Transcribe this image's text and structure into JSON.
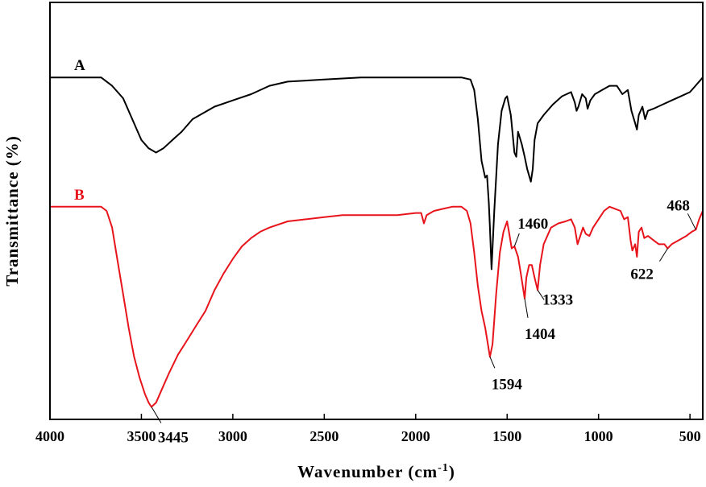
{
  "chart_data": {
    "type": "line",
    "xlabel": "Wavenumber (cm",
    "xlabel_sup": "-1",
    "xlabel_close": ")",
    "ylabel": "Transmittance (%)",
    "xlim": [
      4000,
      430
    ],
    "x_reversed": true,
    "x_ticks": [
      4000,
      3500,
      3000,
      2500,
      2000,
      1500,
      1000,
      500
    ],
    "ylim": [
      0,
      100
    ],
    "grid": false,
    "colors": {
      "A": "#000000",
      "B": "#e8141c",
      "axes": "#000000"
    },
    "series": [
      {
        "name": "A",
        "points": [
          [
            4000,
            82
          ],
          [
            3850,
            82
          ],
          [
            3720,
            82
          ],
          [
            3660,
            80
          ],
          [
            3600,
            77
          ],
          [
            3550,
            72
          ],
          [
            3500,
            67
          ],
          [
            3460,
            65
          ],
          [
            3420,
            64
          ],
          [
            3380,
            65
          ],
          [
            3330,
            67
          ],
          [
            3280,
            69
          ],
          [
            3220,
            72
          ],
          [
            3100,
            75
          ],
          [
            3000,
            76.5
          ],
          [
            2900,
            78
          ],
          [
            2800,
            80
          ],
          [
            2700,
            81
          ],
          [
            2500,
            81.5
          ],
          [
            2300,
            82
          ],
          [
            2100,
            82
          ],
          [
            1900,
            82
          ],
          [
            1750,
            82
          ],
          [
            1700,
            81.5
          ],
          [
            1680,
            79
          ],
          [
            1660,
            72
          ],
          [
            1640,
            62
          ],
          [
            1620,
            58
          ],
          [
            1610,
            58.5
          ],
          [
            1600,
            52
          ],
          [
            1594,
            46
          ],
          [
            1585,
            36
          ],
          [
            1570,
            50
          ],
          [
            1550,
            66
          ],
          [
            1530,
            74
          ],
          [
            1510,
            77
          ],
          [
            1500,
            77.5
          ],
          [
            1480,
            73
          ],
          [
            1460,
            64
          ],
          [
            1450,
            63
          ],
          [
            1440,
            69
          ],
          [
            1420,
            66
          ],
          [
            1404,
            63
          ],
          [
            1390,
            60
          ],
          [
            1370,
            57
          ],
          [
            1360,
            60
          ],
          [
            1350,
            67
          ],
          [
            1333,
            71
          ],
          [
            1300,
            73
          ],
          [
            1250,
            75.5
          ],
          [
            1200,
            77.5
          ],
          [
            1150,
            78.5
          ],
          [
            1130,
            76
          ],
          [
            1120,
            74
          ],
          [
            1110,
            75
          ],
          [
            1090,
            78
          ],
          [
            1070,
            77
          ],
          [
            1060,
            74.5
          ],
          [
            1045,
            76.5
          ],
          [
            1020,
            78
          ],
          [
            980,
            79
          ],
          [
            940,
            80
          ],
          [
            900,
            80
          ],
          [
            870,
            78
          ],
          [
            840,
            79
          ],
          [
            820,
            74
          ],
          [
            800,
            71
          ],
          [
            790,
            69.5
          ],
          [
            780,
            73
          ],
          [
            760,
            75
          ],
          [
            745,
            72
          ],
          [
            730,
            74
          ],
          [
            700,
            74.5
          ],
          [
            650,
            75.5
          ],
          [
            600,
            76.5
          ],
          [
            550,
            77.5
          ],
          [
            500,
            78.5
          ],
          [
            470,
            80
          ],
          [
            430,
            82
          ]
        ]
      },
      {
        "name": "B",
        "points": [
          [
            4000,
            51
          ],
          [
            3850,
            51
          ],
          [
            3720,
            51
          ],
          [
            3690,
            50
          ],
          [
            3660,
            46
          ],
          [
            3630,
            38
          ],
          [
            3600,
            30
          ],
          [
            3570,
            22
          ],
          [
            3540,
            15
          ],
          [
            3510,
            10
          ],
          [
            3480,
            6
          ],
          [
            3460,
            4
          ],
          [
            3445,
            3
          ],
          [
            3420,
            4
          ],
          [
            3390,
            7
          ],
          [
            3350,
            11
          ],
          [
            3300,
            15.5
          ],
          [
            3250,
            19
          ],
          [
            3200,
            22.5
          ],
          [
            3150,
            26
          ],
          [
            3100,
            31
          ],
          [
            3050,
            35
          ],
          [
            3000,
            38.5
          ],
          [
            2950,
            41.5
          ],
          [
            2900,
            43.5
          ],
          [
            2850,
            45
          ],
          [
            2800,
            46
          ],
          [
            2700,
            47.5
          ],
          [
            2600,
            48
          ],
          [
            2500,
            48.5
          ],
          [
            2400,
            49
          ],
          [
            2200,
            49
          ],
          [
            2100,
            49
          ],
          [
            2000,
            49.5
          ],
          [
            1970,
            49.5
          ],
          [
            1955,
            47
          ],
          [
            1940,
            49
          ],
          [
            1900,
            50
          ],
          [
            1850,
            50.5
          ],
          [
            1800,
            51
          ],
          [
            1750,
            51
          ],
          [
            1720,
            50
          ],
          [
            1700,
            47
          ],
          [
            1680,
            40
          ],
          [
            1660,
            32
          ],
          [
            1640,
            26
          ],
          [
            1620,
            22
          ],
          [
            1605,
            18
          ],
          [
            1594,
            15
          ],
          [
            1580,
            18
          ],
          [
            1560,
            30
          ],
          [
            1540,
            40
          ],
          [
            1520,
            45
          ],
          [
            1500,
            47.5
          ],
          [
            1490,
            45
          ],
          [
            1475,
            41
          ],
          [
            1460,
            41.5
          ],
          [
            1440,
            39
          ],
          [
            1425,
            35
          ],
          [
            1404,
            29
          ],
          [
            1395,
            34
          ],
          [
            1380,
            37
          ],
          [
            1365,
            37
          ],
          [
            1350,
            34
          ],
          [
            1333,
            31
          ],
          [
            1320,
            37
          ],
          [
            1300,
            42
          ],
          [
            1260,
            46
          ],
          [
            1220,
            47
          ],
          [
            1180,
            47.5
          ],
          [
            1150,
            48
          ],
          [
            1130,
            46
          ],
          [
            1115,
            42
          ],
          [
            1100,
            44
          ],
          [
            1085,
            46
          ],
          [
            1070,
            44.5
          ],
          [
            1050,
            44
          ],
          [
            1030,
            46
          ],
          [
            1000,
            48
          ],
          [
            970,
            50
          ],
          [
            940,
            51
          ],
          [
            910,
            50.5
          ],
          [
            880,
            50
          ],
          [
            860,
            48
          ],
          [
            840,
            48.5
          ],
          [
            825,
            43
          ],
          [
            815,
            40.5
          ],
          [
            800,
            42
          ],
          [
            790,
            39
          ],
          [
            780,
            45
          ],
          [
            765,
            46
          ],
          [
            750,
            43.5
          ],
          [
            730,
            44
          ],
          [
            700,
            43
          ],
          [
            670,
            42
          ],
          [
            640,
            42
          ],
          [
            622,
            41
          ],
          [
            600,
            42
          ],
          [
            560,
            43
          ],
          [
            520,
            44
          ],
          [
            490,
            45
          ],
          [
            468,
            45.5
          ],
          [
            450,
            48
          ],
          [
            430,
            50
          ]
        ]
      }
    ],
    "annotations": [
      {
        "label": "3445",
        "series": "B",
        "x": 3445
      },
      {
        "label": "1594",
        "series": "B",
        "x": 1594
      },
      {
        "label": "1460",
        "series": "B",
        "x": 1460
      },
      {
        "label": "1404",
        "series": "B",
        "x": 1404
      },
      {
        "label": "1333",
        "series": "B",
        "x": 1333
      },
      {
        "label": "622",
        "series": "B",
        "x": 622
      },
      {
        "label": "468",
        "series": "B",
        "x": 468
      }
    ]
  }
}
